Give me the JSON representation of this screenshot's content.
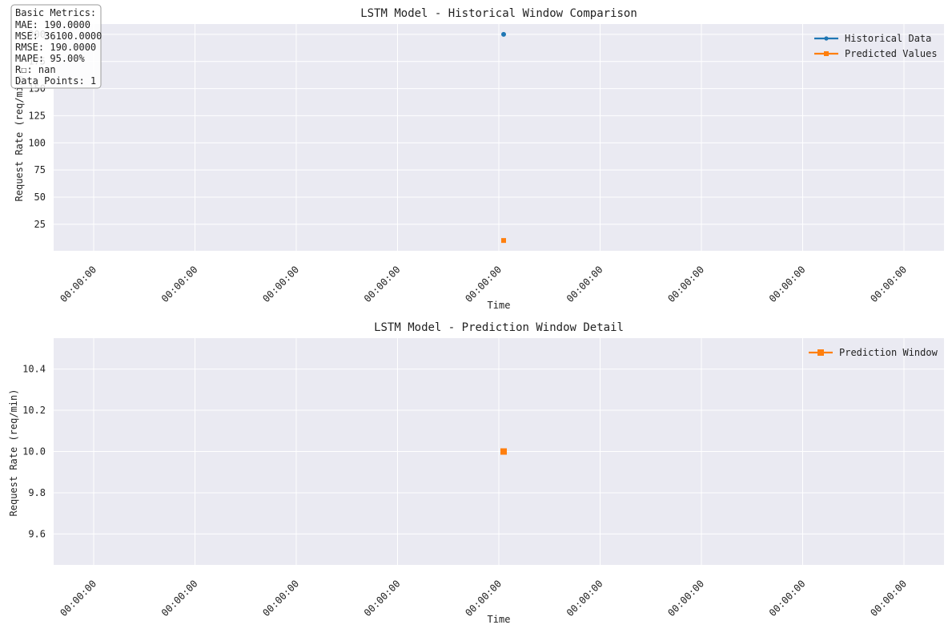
{
  "chart_data": [
    {
      "type": "scatter",
      "title": "LSTM Model - Historical Window Comparison",
      "xlabel": "Time",
      "ylabel": "Request Rate (req/min)",
      "x_tick_labels": [
        "00:00:00",
        "00:00:00",
        "00:00:00",
        "00:00:00",
        "00:00:00",
        "00:00:00",
        "00:00:00",
        "00:00:00",
        "00:00:00"
      ],
      "y_ticks": [
        25,
        50,
        75,
        100,
        125,
        150,
        175,
        200
      ],
      "ylim": [
        0.5,
        209.5
      ],
      "grid": true,
      "legend_position": "top-right",
      "series": [
        {
          "name": "Historical Data",
          "marker": "circle",
          "color": "#1f77b4",
          "points": [
            {
              "x": "00:00:00",
              "y": 200
            }
          ]
        },
        {
          "name": "Predicted Values",
          "marker": "square",
          "color": "#ff7f0e",
          "points": [
            {
              "x": "00:00:00",
              "y": 10
            }
          ]
        }
      ],
      "metrics_box": {
        "lines": [
          "Basic Metrics:",
          "MAE: 190.0000",
          "MSE: 36100.0000",
          "RMSE: 190.0000",
          "MAPE: 95.00%",
          "R☐: nan",
          "Data Points: 1"
        ]
      }
    },
    {
      "type": "scatter",
      "title": "LSTM Model - Prediction Window Detail",
      "xlabel": "Time",
      "ylabel": "Request Rate (req/min)",
      "x_tick_labels": [
        "00:00:00",
        "00:00:00",
        "00:00:00",
        "00:00:00",
        "00:00:00",
        "00:00:00",
        "00:00:00",
        "00:00:00",
        "00:00:00"
      ],
      "y_ticks": [
        "9.6",
        "9.8",
        "10.0",
        "10.2",
        "10.4"
      ],
      "ylim": [
        9.45,
        10.55
      ],
      "grid": true,
      "legend_position": "top-right",
      "series": [
        {
          "name": "Prediction Window",
          "marker": "square",
          "color": "#ff7f0e",
          "points": [
            {
              "x": "00:00:00",
              "y": 10.0
            }
          ]
        }
      ]
    }
  ]
}
